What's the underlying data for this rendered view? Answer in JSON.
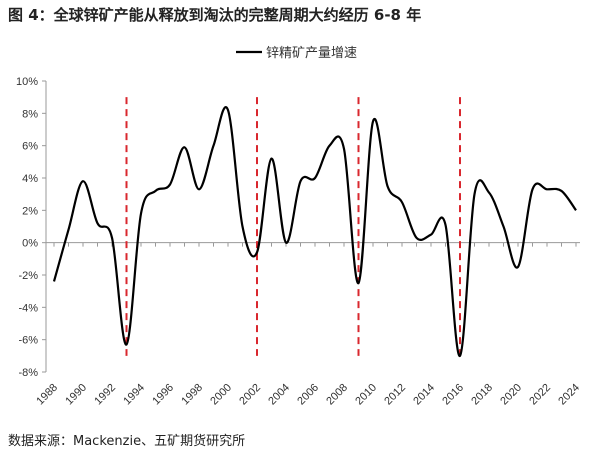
{
  "title": "图 4：全球锌矿产能从释放到淘汰的完整周期大约经历 6-8 年",
  "source": "数据来源：Mackenzie、五矿期货研究所",
  "chart_data": {
    "type": "line",
    "title": "",
    "xlabel": "",
    "ylabel": "",
    "ylim": [
      -8,
      10
    ],
    "yticks": [
      "-8%",
      "-6%",
      "-4%",
      "-2%",
      "0%",
      "2%",
      "4%",
      "6%",
      "8%",
      "10%"
    ],
    "xticks": [
      "1988",
      "1990",
      "1992",
      "1994",
      "1996",
      "1998",
      "2000",
      "2002",
      "2004",
      "2006",
      "2008",
      "2010",
      "2012",
      "2014",
      "2016",
      "2018",
      "2020",
      "2022",
      "2024"
    ],
    "legend": "top-center",
    "grid": false,
    "x": [
      1988,
      1989,
      1990,
      1991,
      1992,
      1993,
      1994,
      1995,
      1996,
      1997,
      1998,
      1999,
      2000,
      2001,
      2002,
      2003,
      2004,
      2005,
      2006,
      2007,
      2008,
      2009,
      2010,
      2011,
      2012,
      2013,
      2014,
      2015,
      2016,
      2017,
      2018,
      2019,
      2020,
      2021,
      2022,
      2023,
      2024
    ],
    "series": [
      {
        "name": "锌精矿产量增速",
        "color": "#000000",
        "values": [
          -2.4,
          0.8,
          3.8,
          1.2,
          0.3,
          -6.3,
          1.8,
          3.2,
          3.6,
          5.9,
          3.3,
          6.0,
          8.2,
          1.0,
          -0.6,
          5.2,
          0.0,
          3.8,
          4.0,
          6.0,
          5.8,
          -2.5,
          7.5,
          3.5,
          2.5,
          0.3,
          0.5,
          1.1,
          -7.0,
          3.0,
          3.1,
          1.0,
          -1.5,
          3.3,
          3.3,
          3.2,
          2.0
        ]
      }
    ],
    "annotations": {
      "type": "vertical-dashed-lines",
      "color": "#d9272e",
      "x": [
        1993,
        2002,
        2009,
        2016
      ],
      "y_range": [
        -7,
        9
      ]
    }
  }
}
